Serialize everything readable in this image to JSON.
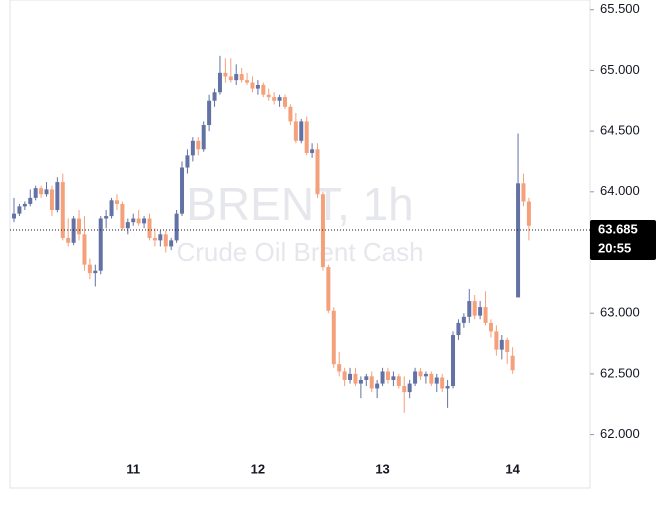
{
  "chart_data": {
    "type": "candlestick",
    "watermark_title": "BRENT, 1h",
    "watermark_subtitle": "Crude Oil Brent Cash",
    "categories": [
      null,
      null,
      null,
      null,
      null,
      null,
      null,
      null,
      null,
      null,
      null,
      null,
      null,
      null,
      null,
      null,
      null,
      null,
      null,
      null,
      null,
      null,
      "11",
      null,
      null,
      null,
      null,
      null,
      null,
      null,
      null,
      null,
      null,
      null,
      null,
      null,
      null,
      null,
      null,
      null,
      null,
      null,
      null,
      null,
      null,
      "12",
      null,
      null,
      null,
      null,
      null,
      null,
      null,
      null,
      null,
      null,
      null,
      null,
      null,
      null,
      null,
      null,
      null,
      null,
      null,
      null,
      null,
      null,
      "13",
      null,
      null,
      null,
      null,
      null,
      null,
      null,
      null,
      null,
      null,
      null,
      null,
      null,
      null,
      null,
      null,
      null,
      null,
      null,
      null,
      null,
      null,
      null,
      "14",
      null,
      null,
      null
    ],
    "open": [
      63.78,
      63.82,
      63.88,
      63.9,
      63.95,
      64.03,
      63.98,
      64.02,
      63.85,
      64.08,
      63.62,
      63.58,
      63.78,
      63.65,
      63.4,
      63.33,
      63.35,
      63.78,
      63.8,
      63.93,
      63.9,
      63.7,
      63.75,
      63.78,
      63.74,
      63.78,
      63.62,
      63.6,
      63.65,
      63.55,
      63.6,
      63.82,
      64.2,
      64.3,
      64.42,
      64.35,
      64.55,
      64.75,
      64.82,
      64.98,
      64.95,
      64.92,
      64.97,
      64.92,
      64.9,
      64.85,
      64.88,
      64.8,
      64.78,
      64.75,
      64.78,
      64.7,
      64.58,
      64.42,
      64.58,
      64.32,
      64.35,
      63.98,
      63.38,
      63.02,
      62.58,
      62.52,
      62.45,
      62.5,
      62.42,
      62.45,
      62.48,
      62.38,
      62.42,
      62.52,
      62.45,
      62.48,
      62.4,
      62.35,
      62.42,
      62.52,
      62.48,
      62.5,
      62.42,
      62.47,
      62.38,
      62.4,
      62.82,
      62.92,
      62.97,
      63.1,
      62.98,
      63.05,
      62.92,
      62.85,
      62.7,
      62.78,
      62.65,
      63.13,
      64.07,
      63.92
    ],
    "high": [
      63.95,
      63.9,
      63.92,
      64.02,
      64.05,
      64.05,
      64.08,
      64.05,
      64.12,
      64.15,
      63.78,
      63.8,
      63.85,
      63.8,
      63.45,
      63.4,
      63.8,
      63.85,
      63.95,
      63.98,
      63.92,
      63.78,
      63.82,
      63.85,
      63.8,
      63.82,
      63.7,
      63.68,
      63.68,
      63.62,
      63.85,
      64.25,
      64.35,
      64.45,
      64.45,
      64.58,
      64.8,
      64.85,
      65.12,
      65.1,
      65.1,
      65.05,
      65.02,
      64.98,
      64.95,
      64.92,
      64.9,
      64.85,
      64.82,
      64.8,
      64.8,
      64.72,
      64.65,
      64.6,
      64.62,
      64.4,
      64.4,
      64.0,
      63.4,
      63.05,
      62.68,
      62.55,
      62.55,
      62.55,
      62.48,
      62.5,
      62.52,
      62.45,
      62.55,
      62.55,
      62.52,
      62.5,
      62.48,
      62.45,
      62.55,
      62.55,
      62.52,
      62.52,
      62.5,
      62.5,
      62.45,
      62.85,
      62.95,
      63.0,
      63.2,
      63.15,
      63.1,
      63.18,
      62.95,
      62.9,
      62.82,
      62.8,
      62.72,
      64.48,
      64.15,
      63.95
    ],
    "low": [
      63.75,
      63.8,
      63.85,
      63.88,
      63.93,
      63.95,
      63.96,
      63.8,
      63.83,
      63.6,
      63.55,
      63.56,
      63.6,
      63.35,
      63.28,
      63.22,
      63.32,
      63.7,
      63.78,
      63.85,
      63.68,
      63.65,
      63.72,
      63.72,
      63.7,
      63.6,
      63.55,
      63.55,
      63.5,
      63.52,
      63.58,
      63.8,
      64.15,
      64.25,
      64.3,
      64.33,
      64.5,
      64.7,
      64.8,
      64.9,
      64.9,
      64.88,
      64.9,
      64.88,
      64.82,
      64.8,
      64.78,
      64.75,
      64.72,
      64.7,
      64.68,
      64.55,
      64.4,
      64.4,
      64.3,
      64.28,
      63.95,
      63.35,
      63.0,
      62.55,
      62.48,
      62.4,
      62.42,
      62.4,
      62.3,
      62.4,
      62.35,
      62.3,
      62.4,
      62.42,
      62.4,
      62.38,
      62.18,
      62.3,
      62.4,
      62.45,
      62.42,
      62.4,
      62.35,
      62.35,
      62.22,
      62.38,
      62.78,
      62.88,
      62.92,
      62.95,
      62.95,
      62.9,
      62.8,
      62.65,
      62.62,
      62.58,
      62.5,
      63.13,
      63.88,
      63.6
    ],
    "close": [
      63.82,
      63.88,
      63.9,
      63.95,
      64.03,
      63.98,
      64.02,
      63.85,
      64.08,
      63.62,
      63.58,
      63.78,
      63.65,
      63.4,
      63.33,
      63.35,
      63.78,
      63.8,
      63.93,
      63.9,
      63.7,
      63.75,
      63.78,
      63.74,
      63.78,
      63.62,
      63.6,
      63.65,
      63.55,
      63.6,
      63.82,
      64.2,
      64.3,
      64.42,
      64.35,
      64.55,
      64.75,
      64.82,
      64.98,
      64.95,
      64.92,
      64.97,
      64.92,
      64.9,
      64.85,
      64.88,
      64.8,
      64.78,
      64.75,
      64.78,
      64.7,
      64.58,
      64.42,
      64.58,
      64.32,
      64.35,
      63.98,
      63.38,
      63.02,
      62.58,
      62.52,
      62.45,
      62.5,
      62.42,
      62.45,
      62.48,
      62.38,
      62.42,
      62.52,
      62.45,
      62.48,
      62.4,
      62.35,
      62.42,
      62.52,
      62.48,
      62.5,
      62.42,
      62.47,
      62.38,
      62.4,
      62.82,
      62.92,
      62.97,
      63.1,
      62.98,
      63.05,
      62.92,
      62.85,
      62.7,
      62.78,
      62.68,
      62.53,
      64.07,
      63.92,
      63.72
    ],
    "up_color": "#6272a4",
    "down_color": "#f4a07a",
    "last_price": {
      "value": 63.685,
      "label": "63.685"
    },
    "countdown": "20:55",
    "ylim": [
      61.56,
      65.58
    ],
    "yticks": [
      {
        "value": 62,
        "label": "62.000"
      },
      {
        "value": 62.5,
        "label": "62.500"
      },
      {
        "value": 63,
        "label": "63.000"
      },
      {
        "value": 64,
        "label": "64.000"
      },
      {
        "value": 64.5,
        "label": "64.500"
      },
      {
        "value": 65,
        "label": "65.000"
      },
      {
        "value": 65.5,
        "label": "65.500"
      }
    ]
  }
}
